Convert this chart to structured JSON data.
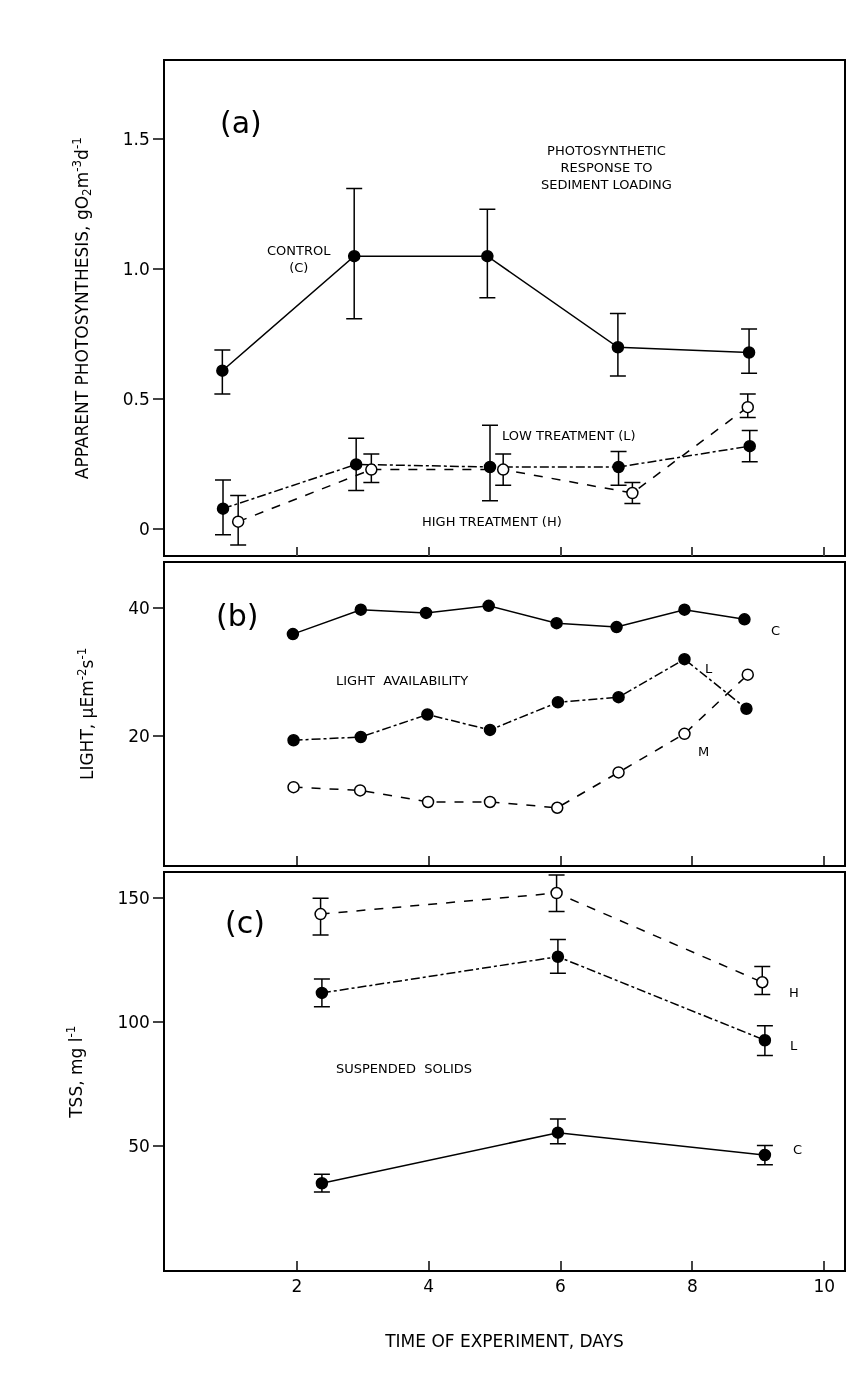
{
  "chart_data": [
    {
      "type": "line",
      "title": "(a)",
      "ylabel": "APPARENT PHOTOSYNTHESIS, gO$_{2}$m$^{-3}$d$^{-1}$",
      "annotations": [
        "PHOTOSYNTHETIC\nRESPONSE TO\nSEDIMENT LOADING"
      ],
      "xlim": [
        0,
        10.3
      ],
      "xticks": [
        2,
        4,
        6,
        8,
        10
      ],
      "ylim": [
        -0.1,
        1.8
      ],
      "yticks": [
        {
          "value": 0,
          "label": "0"
        },
        {
          "value": 0.5,
          "label": "0.5"
        },
        {
          "value": 1.0,
          "label": "1.0"
        },
        {
          "value": 1.5,
          "label": "1.5"
        }
      ],
      "tick_labels": "y",
      "grid": false,
      "legend": false,
      "series": [
        {
          "name": "CONTROL\n(C)",
          "color": "#000000",
          "marker": "circle",
          "line_style": "solid",
          "x": [
            0.87,
            2.87,
            4.89,
            6.87,
            8.86
          ],
          "values": [
            0.61,
            1.05,
            1.05,
            0.7,
            0.68
          ],
          "errors": [
            [
              0.52,
              0.69
            ],
            [
              0.81,
              1.31
            ],
            [
              0.89,
              1.23
            ],
            [
              0.59,
              0.83
            ],
            [
              0.6,
              0.77
            ]
          ]
        },
        {
          "name": "LOW TREATMENT (L)",
          "color": "#000000",
          "marker": "circle",
          "line_style": "dashdot",
          "x": [
            0.88,
            2.9,
            4.93,
            6.88,
            8.87
          ],
          "values": [
            0.08,
            0.25,
            0.24,
            0.24,
            0.32
          ],
          "errors": [
            [
              -0.02,
              0.19
            ],
            [
              0.15,
              0.35
            ],
            [
              0.11,
              0.4
            ],
            [
              0.17,
              0.3
            ],
            [
              0.26,
              0.38
            ]
          ]
        },
        {
          "name": "HIGH TREATMENT (H)",
          "color": "#000000",
          "marker": "circle-open",
          "line_style": "dashed",
          "x": [
            1.11,
            3.13,
            5.13,
            7.09,
            8.84
          ],
          "values": [
            0.03,
            0.23,
            0.23,
            0.14,
            0.47
          ],
          "errors": [
            [
              -0.06,
              0.13
            ],
            [
              0.18,
              0.29
            ],
            [
              0.17,
              0.29
            ],
            [
              0.1,
              0.18
            ],
            [
              0.43,
              0.52
            ]
          ]
        }
      ]
    },
    {
      "type": "line",
      "title": "(b)",
      "ylabel": "LIGHT, µEm$^{-2}$s$^{-1}$",
      "annotations": [
        "LIGHT  AVAILABILITY"
      ],
      "xlim": [
        0,
        10.3
      ],
      "xticks": [
        2,
        4,
        6,
        8,
        10
      ],
      "ylim": [
        0,
        47
      ],
      "yticks": [
        20,
        40
      ],
      "tick_labels": "y",
      "grid": false,
      "legend": false,
      "series": [
        {
          "name": "C",
          "color": "#000000",
          "marker": "circle",
          "line_style": "solid",
          "x": [
            1.94,
            2.97,
            3.96,
            4.91,
            5.94,
            6.85,
            7.88,
            8.79
          ],
          "values": [
            35.9,
            39.7,
            39.2,
            40.3,
            37.6,
            37.0,
            39.7,
            38.2
          ]
        },
        {
          "name": "L",
          "color": "#000000",
          "marker": "circle",
          "line_style": "dashdot",
          "x": [
            1.95,
            2.97,
            3.98,
            4.93,
            5.96,
            6.88,
            7.88,
            8.82
          ],
          "values": [
            19.4,
            19.9,
            23.4,
            21.0,
            25.3,
            26.1,
            32.0,
            24.3
          ]
        },
        {
          "name": "M",
          "color": "#000000",
          "marker": "circle-open",
          "line_style": "dashed",
          "x": [
            1.95,
            2.96,
            3.99,
            4.93,
            5.95,
            6.88,
            7.88,
            8.84
          ],
          "values": [
            12.1,
            11.6,
            9.8,
            9.8,
            8.9,
            14.4,
            20.4,
            29.6
          ]
        }
      ]
    },
    {
      "type": "line",
      "title": "(c)",
      "xlabel": "TIME OF EXPERIMENT, DAYS",
      "ylabel": "TSS, mg l$^{-1}$",
      "annotations": [
        "SUSPENDED  SOLIDS"
      ],
      "xlim": [
        0,
        10.3
      ],
      "xticks": [
        2,
        4,
        6,
        8,
        10
      ],
      "ylim": [
        0,
        160
      ],
      "yticks": [
        50,
        100,
        150
      ],
      "grid": false,
      "legend": false,
      "series": [
        {
          "name": "H",
          "color": "#000000",
          "marker": "circle-open",
          "line_style": "dashed",
          "x": [
            2.36,
            5.94,
            9.06
          ],
          "values": [
            143.6,
            152.1,
            116.1
          ],
          "errors": [
            [
              135.2,
              150.0
            ],
            [
              144.6,
              159.4
            ],
            [
              111.2,
              122.5
            ]
          ]
        },
        {
          "name": "L",
          "color": "#000000",
          "marker": "circle",
          "line_style": "dashdot",
          "x": [
            2.38,
            5.96,
            9.1
          ],
          "values": [
            111.8,
            126.4,
            92.7
          ],
          "errors": [
            [
              106.2,
              117.4
            ],
            [
              119.7,
              133.3
            ],
            [
              86.5,
              98.5
            ]
          ]
        },
        {
          "name": "C",
          "color": "#000000",
          "marker": "circle",
          "line_style": "solid",
          "x": [
            2.38,
            5.96,
            9.1
          ],
          "values": [
            35.0,
            55.4,
            46.4
          ],
          "errors": [
            [
              31.5,
              38.6
            ],
            [
              50.9,
              60.9
            ],
            [
              42.5,
              50.2
            ]
          ]
        }
      ]
    }
  ]
}
